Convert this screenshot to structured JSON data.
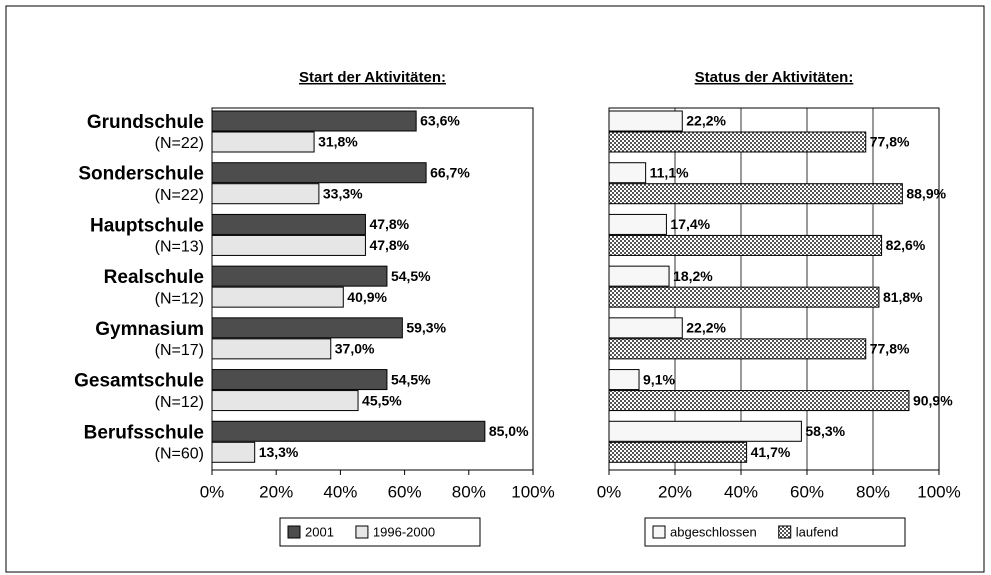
{
  "chart_data": [
    {
      "type": "bar",
      "orientation": "horizontal",
      "title": "Start der Aktivitäten:",
      "categories": [
        [
          "Grundschule",
          "(N=22)"
        ],
        [
          "Sonderschule",
          "(N=22)"
        ],
        [
          "Hauptschule",
          "(N=13)"
        ],
        [
          "Realschule",
          "(N=12)"
        ],
        [
          "Gymnasium",
          "(N=17)"
        ],
        [
          "Gesamtschule",
          "(N=12)"
        ],
        [
          "Berufsschule",
          "(N=60)"
        ]
      ],
      "series": [
        {
          "name": "2001",
          "color": "#4d4d4d",
          "values": [
            63.6,
            66.7,
            47.8,
            54.5,
            59.3,
            54.5,
            85.0
          ],
          "value_labels": [
            "63,6%",
            "66,7%",
            "47,8%",
            "54,5%",
            "59,3%",
            "54,5%",
            "85,0%"
          ]
        },
        {
          "name": "1996-2000",
          "color": "#e6e6e6",
          "values": [
            31.8,
            33.3,
            47.8,
            40.9,
            37.0,
            45.5,
            13.3
          ],
          "value_labels": [
            "31,8%",
            "33,3%",
            "47,8%",
            "40,9%",
            "37,0%",
            "45,5%",
            "13,3%"
          ]
        }
      ],
      "xlim": [
        0,
        100
      ],
      "xticks": [
        {
          "value": 0,
          "label": "0%"
        },
        {
          "value": 20,
          "label": "20%"
        },
        {
          "value": 40,
          "label": "40%"
        },
        {
          "value": 60,
          "label": "60%"
        },
        {
          "value": 80,
          "label": "80%"
        },
        {
          "value": 100,
          "label": "100%"
        }
      ],
      "grid": false,
      "legend": "bottom"
    },
    {
      "type": "bar",
      "orientation": "horizontal",
      "title": "Status der Aktivitäten:",
      "series": [
        {
          "name": "abgeschlossen",
          "color": "#f7f7f7",
          "values": [
            22.2,
            11.1,
            17.4,
            18.2,
            22.2,
            9.1,
            58.3
          ],
          "value_labels": [
            "22,2%",
            "11,1%",
            "17,4%",
            "18,2%",
            "22,2%",
            "9,1%",
            "58,3%"
          ]
        },
        {
          "name": "laufend",
          "color": "#9a9a9a",
          "pattern": "checker",
          "values": [
            77.8,
            88.9,
            82.6,
            81.8,
            77.8,
            90.9,
            41.7
          ],
          "value_labels": [
            "77,8%",
            "88,9%",
            "82,6%",
            "81,8%",
            "77,8%",
            "90,9%",
            "41,7%"
          ]
        }
      ],
      "xlim": [
        0,
        100
      ],
      "xticks": [
        {
          "value": 0,
          "label": "0%"
        },
        {
          "value": 20,
          "label": "20%"
        },
        {
          "value": 40,
          "label": "40%"
        },
        {
          "value": 60,
          "label": "60%"
        },
        {
          "value": 80,
          "label": "80%"
        },
        {
          "value": 100,
          "label": "100%"
        }
      ],
      "grid": true,
      "legend": "bottom"
    }
  ]
}
